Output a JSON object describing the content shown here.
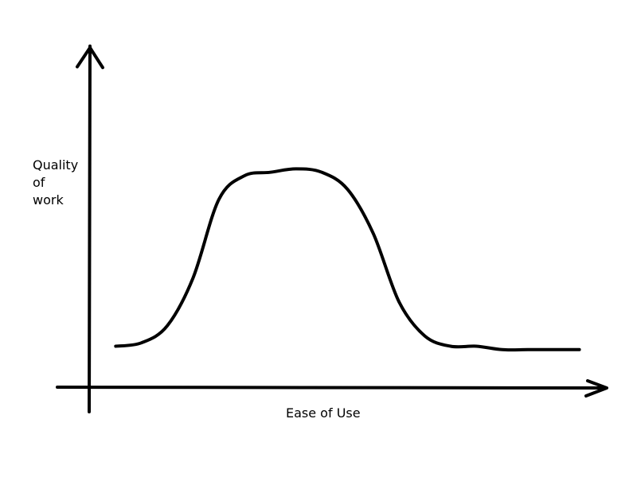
{
  "chart_data": {
    "type": "line",
    "title": "",
    "xlabel": "Ease of Use",
    "ylabel": "Quality\nof\nwork",
    "grid": false,
    "legend": "none",
    "colors": {
      "background": "#ffffff",
      "line": "#000000",
      "axis": "#000000"
    },
    "series": [
      {
        "name": "",
        "x": [
          0.05,
          0.1,
          0.15,
          0.2,
          0.25,
          0.3,
          0.35,
          0.4,
          0.45,
          0.5,
          0.55,
          0.6,
          0.65,
          0.7,
          0.75,
          0.8,
          0.85,
          0.9,
          0.95
        ],
        "y": [
          0.12,
          0.13,
          0.18,
          0.32,
          0.55,
          0.62,
          0.63,
          0.64,
          0.63,
          0.58,
          0.45,
          0.25,
          0.15,
          0.12,
          0.12,
          0.11,
          0.11,
          0.11,
          0.11
        ]
      }
    ]
  }
}
